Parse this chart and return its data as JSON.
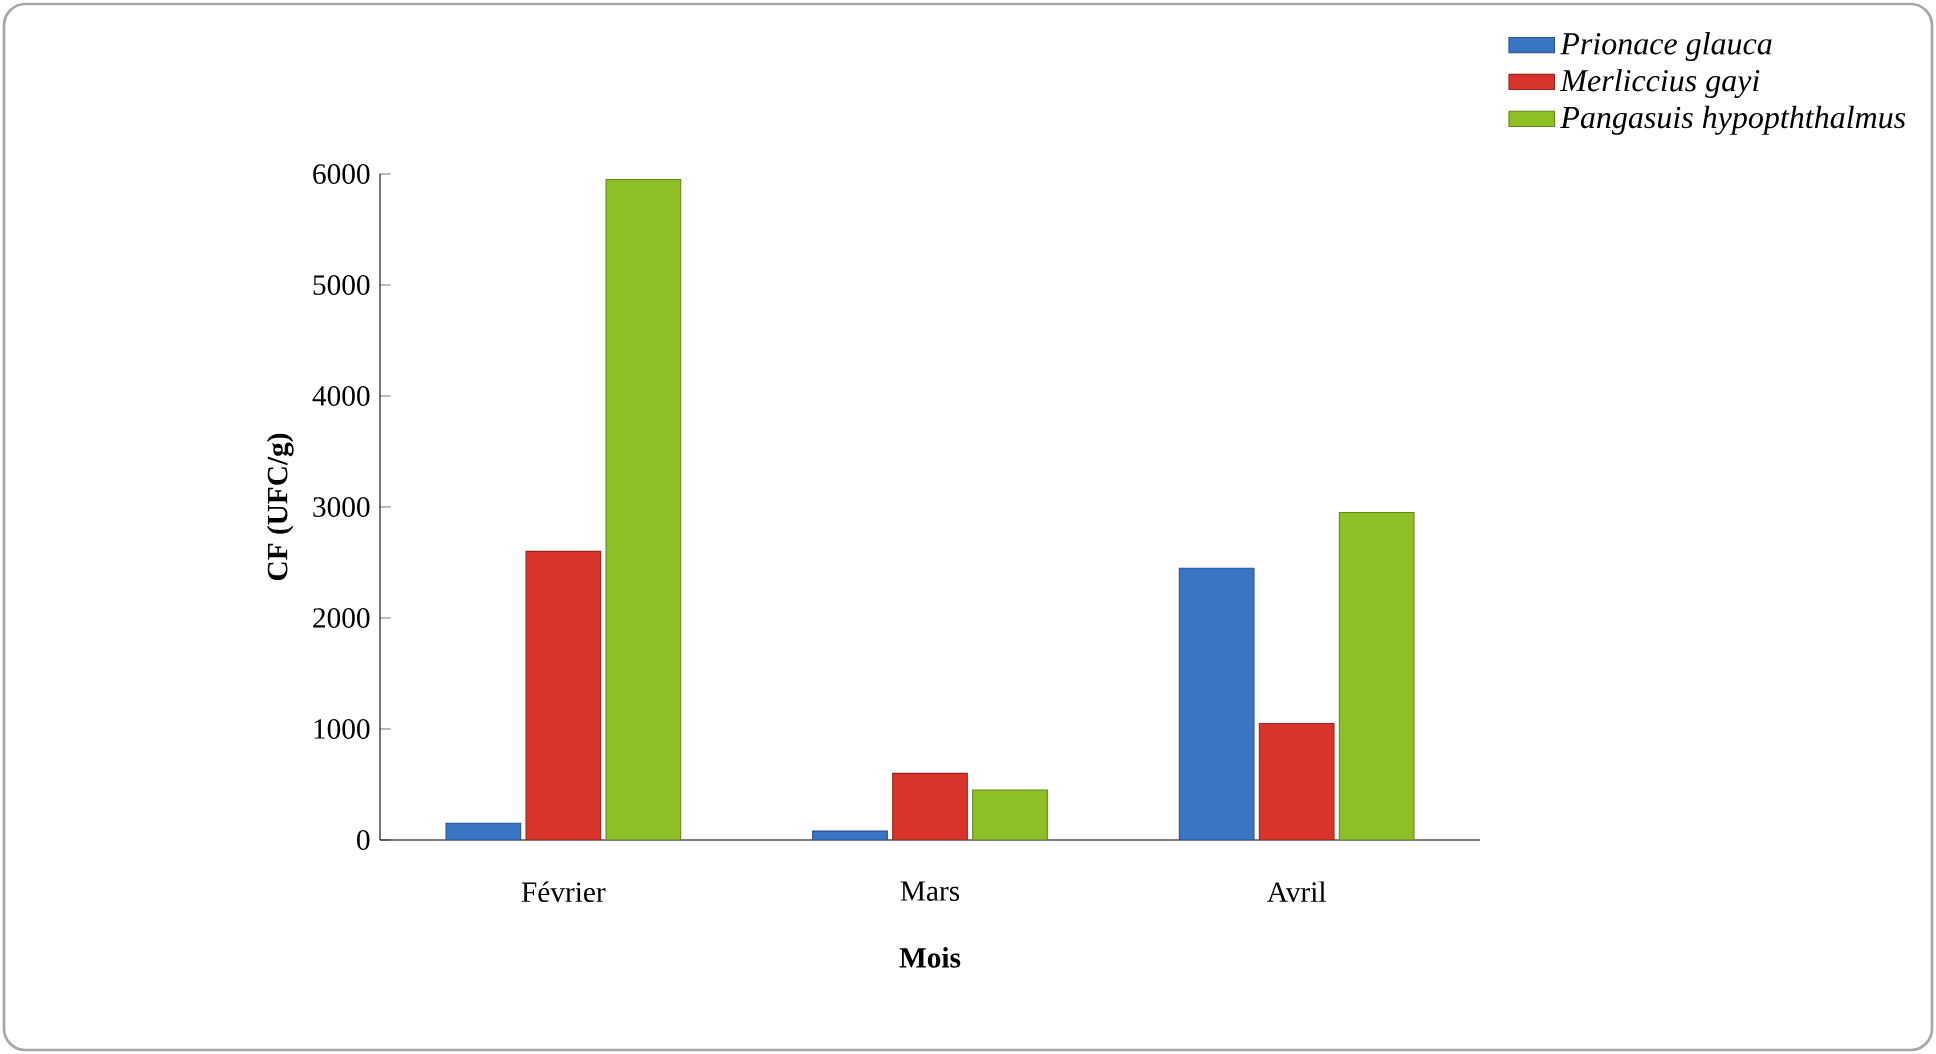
{
  "chart_data": {
    "type": "bar",
    "xlabel": "Mois",
    "ylabel": "CF (UFC/g)",
    "categories": [
      "Février",
      "Mars",
      "Avril"
    ],
    "series": [
      {
        "name": "*Prionace glauca*",
        "color": "#3a75c4",
        "values": [
          150,
          80,
          2450
        ]
      },
      {
        "name": "*Merliccius gayi*",
        "color": "#d9342b",
        "values": [
          2600,
          600,
          1050
        ]
      },
      {
        "name": "*Pangasuis hypopththalmus*",
        "color": "#8fbf26",
        "values": [
          5950,
          450,
          2950
        ]
      }
    ],
    "ylim": [
      0,
      6000
    ],
    "yticks": [
      0,
      1000,
      2000,
      3000,
      4000,
      5000,
      6000
    ],
    "legend": "top right"
  }
}
